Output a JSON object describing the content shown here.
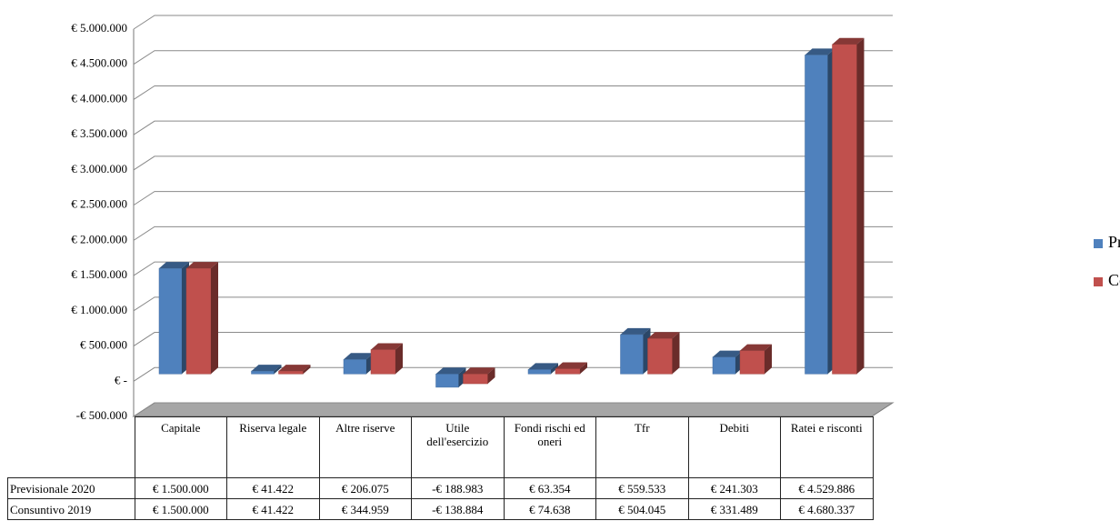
{
  "chart_data": {
    "type": "bar3d",
    "categories": [
      "Capitale",
      "Riserva legale",
      "Altre riserve",
      "Utile dell'esercizio",
      "Fondi rischi ed oneri",
      "Tfr",
      "Debiti",
      "Ratei e risconti"
    ],
    "series": [
      {
        "name": "Previsionale 2020",
        "color": "#4f81bd",
        "values": [
          1500000,
          41422,
          206075,
          -188983,
          63354,
          559533,
          241303,
          4529886
        ],
        "value_labels": [
          "€ 1.500.000",
          "€ 41.422",
          "€ 206.075",
          "-€ 188.983",
          "€ 63.354",
          "€ 559.533",
          "€ 241.303",
          "€ 4.529.886"
        ]
      },
      {
        "name": "Consuntivo 2019",
        "color": "#c0504d",
        "values": [
          1500000,
          41422,
          344959,
          -138884,
          74638,
          504045,
          331489,
          4680337
        ],
        "value_labels": [
          "€ 1.500.000",
          "€ 41.422",
          "€ 344.959",
          "-€ 138.884",
          "€ 74.638",
          "€ 504.045",
          "€ 331.489",
          "€ 4.680.337"
        ]
      }
    ],
    "ylim": [
      -500000,
      5000000
    ],
    "yticks": [
      {
        "value": -500000,
        "label": "-€ 500.000"
      },
      {
        "value": 0,
        "label": "€ -"
      },
      {
        "value": 500000,
        "label": "€ 500.000"
      },
      {
        "value": 1000000,
        "label": "€ 1.000.000"
      },
      {
        "value": 1500000,
        "label": "€ 1.500.000"
      },
      {
        "value": 2000000,
        "label": "€ 2.000.000"
      },
      {
        "value": 2500000,
        "label": "€ 2.500.000"
      },
      {
        "value": 3000000,
        "label": "€ 3.000.000"
      },
      {
        "value": 3500000,
        "label": "€ 3.500.000"
      },
      {
        "value": 4000000,
        "label": "€ 4.000.000"
      },
      {
        "value": 4500000,
        "label": "€ 4.500.000"
      },
      {
        "value": 5000000,
        "label": "€ 5.000.000"
      }
    ],
    "grid": true,
    "legend": "right",
    "data_table": true
  }
}
